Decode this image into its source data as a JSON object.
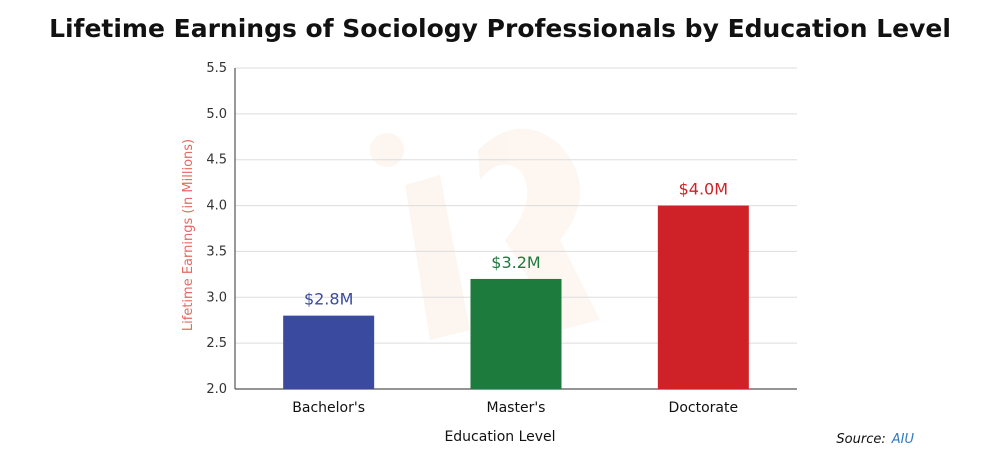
{
  "chart_data": {
    "type": "bar",
    "title": "Lifetime Earnings of Sociology Professionals by Education Level",
    "categories": [
      "Bachelor's",
      "Master's",
      "Doctorate"
    ],
    "values": [
      2.8,
      3.2,
      4.0
    ],
    "data_labels": [
      "$2.8M",
      "$3.2M",
      "$4.0M"
    ],
    "bar_colors": [
      "#3a4b9f",
      "#1e7b3e",
      "#cf2228"
    ],
    "xlabel": "Education Level",
    "ylabel": "Lifetime Earnings (in Millions)",
    "ylabel_color": "#e56a5f",
    "ylim": [
      2.0,
      5.5
    ],
    "yticks": [
      "2.0",
      "2.5",
      "3.0",
      "3.5",
      "4.0",
      "4.5",
      "5.0",
      "5.5"
    ],
    "grid": true,
    "legend": "none"
  },
  "source": {
    "label": "Source:",
    "value": "AIU"
  }
}
